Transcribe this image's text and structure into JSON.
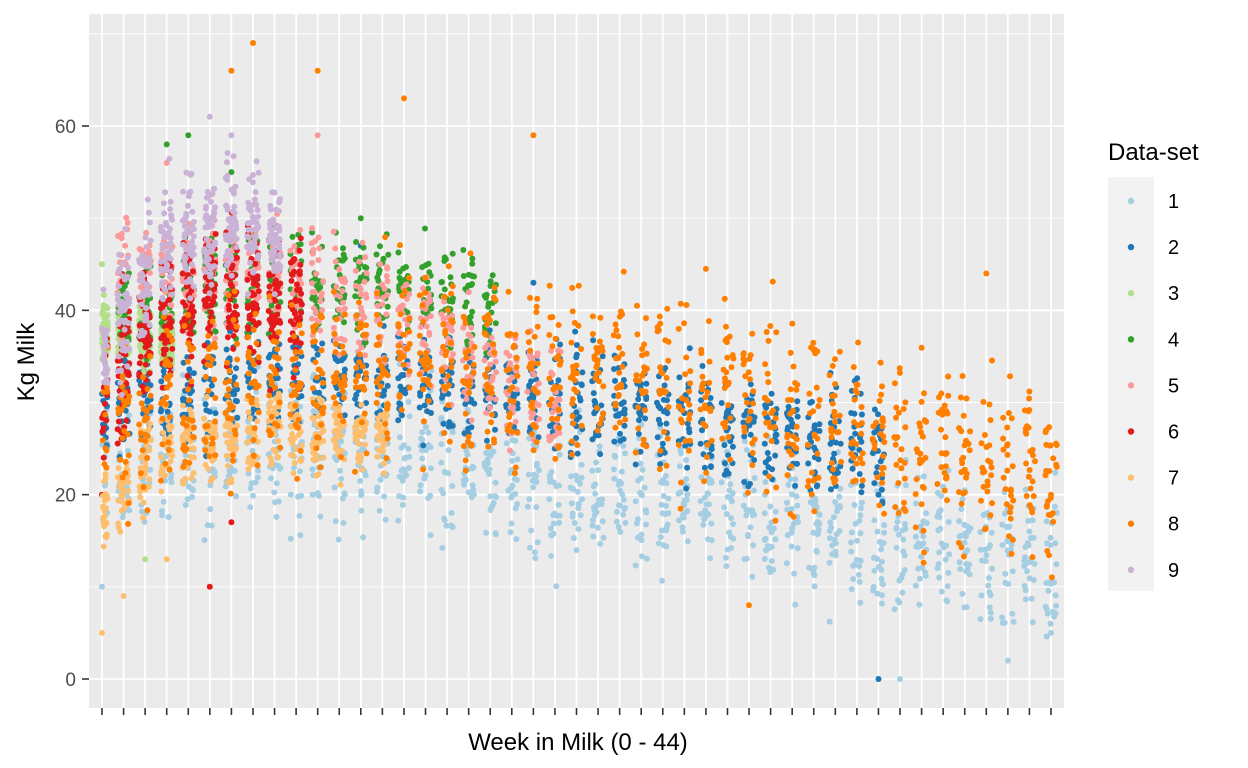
{
  "chart_data": {
    "type": "scatter",
    "title": "",
    "xlabel": "Week in Milk (0 - 44)",
    "ylabel": "Kg Milk",
    "xlim": [
      0,
      44
    ],
    "ylim": [
      -3,
      72
    ],
    "x_ticks": [
      0,
      1,
      2,
      3,
      4,
      5,
      6,
      7,
      8,
      9,
      10,
      11,
      12,
      13,
      14,
      15,
      16,
      17,
      18,
      19,
      20,
      21,
      22,
      23,
      24,
      25,
      26,
      27,
      28,
      29,
      30,
      31,
      32,
      33,
      34,
      35,
      36,
      37,
      38,
      39,
      40,
      41,
      42,
      43,
      44
    ],
    "x_tick_labels_shown": false,
    "y_ticks": [
      0,
      20,
      40,
      60
    ],
    "y_tick_labels": [
      "0",
      "20",
      "40",
      "60"
    ],
    "grid": true,
    "panel_background": "#ebebeb",
    "grid_color": "#ffffff",
    "legend": {
      "title": "Data-set",
      "position": "right",
      "entries": [
        "1",
        "2",
        "3",
        "4",
        "5",
        "6",
        "7",
        "8",
        "9"
      ]
    },
    "series": [
      {
        "name": "1",
        "color": "#a6cee3",
        "x_range": [
          0,
          44
        ],
        "trend": [
          [
            0,
            24
          ],
          [
            10,
            25
          ],
          [
            20,
            22
          ],
          [
            30,
            18
          ],
          [
            40,
            14
          ],
          [
            44,
            12
          ]
        ],
        "spread": 7,
        "samples": [
          [
            0,
            10
          ],
          [
            36,
            0
          ],
          [
            37,
            0
          ],
          [
            42,
            2
          ],
          [
            43,
            16
          ],
          [
            44,
            5
          ]
        ]
      },
      {
        "name": "2",
        "color": "#1f78b4",
        "x_range": [
          0,
          36
        ],
        "trend": [
          [
            0,
            30
          ],
          [
            10,
            33
          ],
          [
            20,
            31
          ],
          [
            30,
            27
          ],
          [
            36,
            25
          ]
        ],
        "spread": 5,
        "samples": [
          [
            1,
            26
          ],
          [
            12,
            47
          ],
          [
            20,
            43
          ],
          [
            36,
            0
          ],
          [
            36,
            20
          ]
        ]
      },
      {
        "name": "3",
        "color": "#b2df8a",
        "x_range": [
          0,
          3
        ],
        "trend": [
          [
            0,
            38
          ],
          [
            3,
            37
          ]
        ],
        "spread": 3,
        "samples": [
          [
            0,
            45
          ],
          [
            2,
            13
          ],
          [
            1,
            41
          ]
        ]
      },
      {
        "name": "4",
        "color": "#33a02c",
        "x_range": [
          1,
          18
        ],
        "trend": [
          [
            1,
            40
          ],
          [
            8,
            44
          ],
          [
            14,
            42
          ],
          [
            18,
            40
          ]
        ],
        "spread": 5,
        "samples": [
          [
            3,
            58
          ],
          [
            4,
            59
          ],
          [
            6,
            55
          ],
          [
            12,
            50
          ]
        ]
      },
      {
        "name": "5",
        "color": "#fb9a99",
        "x_range": [
          1,
          21
        ],
        "trend": [
          [
            1,
            44
          ],
          [
            8,
            44
          ],
          [
            15,
            38
          ],
          [
            21,
            30
          ]
        ],
        "spread": 6,
        "samples": [
          [
            3,
            56
          ],
          [
            10,
            59
          ],
          [
            20,
            26
          ]
        ]
      },
      {
        "name": "6",
        "color": "#e31a1c",
        "x_range": [
          0,
          9
        ],
        "trend": [
          [
            0,
            30
          ],
          [
            3,
            40
          ],
          [
            6,
            43
          ],
          [
            9,
            40
          ]
        ],
        "spread": 7,
        "samples": [
          [
            5,
            10
          ],
          [
            6,
            17
          ],
          [
            0,
            20
          ]
        ]
      },
      {
        "name": "7",
        "color": "#fdbf6f",
        "x_range": [
          0,
          13
        ],
        "trend": [
          [
            0,
            18
          ],
          [
            3,
            25
          ],
          [
            8,
            27
          ],
          [
            13,
            27
          ]
        ],
        "spread": 4,
        "samples": [
          [
            0,
            5
          ],
          [
            1,
            9
          ],
          [
            3,
            13
          ]
        ]
      },
      {
        "name": "8",
        "color": "#ff7f00",
        "x_range": [
          0,
          44
        ],
        "trend": [
          [
            0,
            28
          ],
          [
            8,
            33
          ],
          [
            15,
            35
          ],
          [
            22,
            33
          ],
          [
            30,
            30
          ],
          [
            38,
            25
          ],
          [
            44,
            22
          ]
        ],
        "spread": 9,
        "samples": [
          [
            7,
            69
          ],
          [
            6,
            66
          ],
          [
            10,
            66
          ],
          [
            14,
            63
          ],
          [
            20,
            59
          ],
          [
            30,
            8
          ],
          [
            41,
            44
          ],
          [
            44,
            20
          ]
        ]
      },
      {
        "name": "9",
        "color": "#cab2d6",
        "x_range": [
          0,
          8
        ],
        "trend": [
          [
            0,
            36
          ],
          [
            3,
            47
          ],
          [
            6,
            50
          ],
          [
            8,
            48
          ]
        ],
        "spread": 6,
        "samples": [
          [
            5,
            61
          ],
          [
            6,
            59
          ],
          [
            0,
            38
          ]
        ]
      }
    ]
  }
}
